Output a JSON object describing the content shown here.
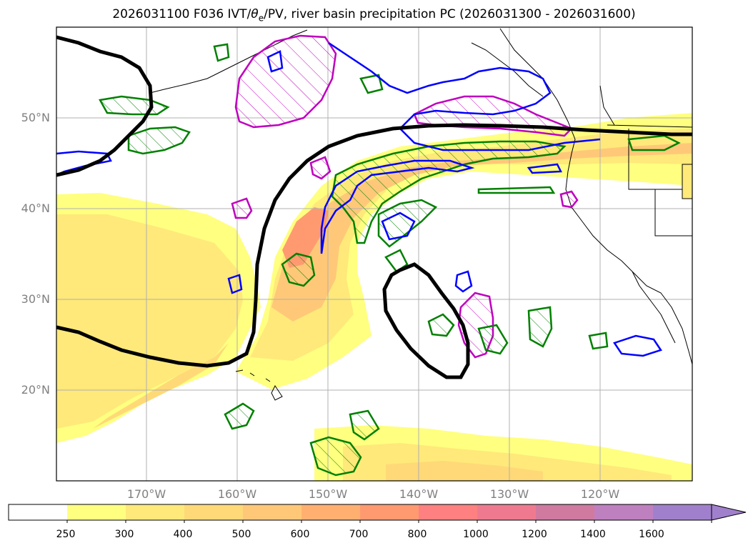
{
  "title": {
    "prefix": "2026031100 F036 IVT/",
    "theta": "θ",
    "sub_e": "e",
    "suffix": "/PV, river basin precipitation PC (2026031300 - 2026031600)"
  },
  "map": {
    "lat_labels": [
      "50°N",
      "40°N",
      "30°N",
      "20°N"
    ],
    "lon_labels": [
      "170°W",
      "160°W",
      "150°W",
      "140°W",
      "130°W",
      "120°W"
    ],
    "contour_colors": {
      "theta_e": "#008000",
      "pv": "#0000ff",
      "precip_pc": "#bf00bf",
      "height": "#000000",
      "coast": "#000000"
    }
  },
  "colorbar": {
    "labels": [
      "250",
      "300",
      "400",
      "500",
      "600",
      "700",
      "800",
      "1000",
      "1200",
      "1400",
      "1600"
    ],
    "colors": [
      "#ffffff",
      "#ffff80",
      "#ffe97a",
      "#ffd978",
      "#ffc878",
      "#ffb070",
      "#ff9a70",
      "#ff8080",
      "#ef7a8f",
      "#d07aa0",
      "#bf80c0",
      "#a080cc"
    ]
  }
}
